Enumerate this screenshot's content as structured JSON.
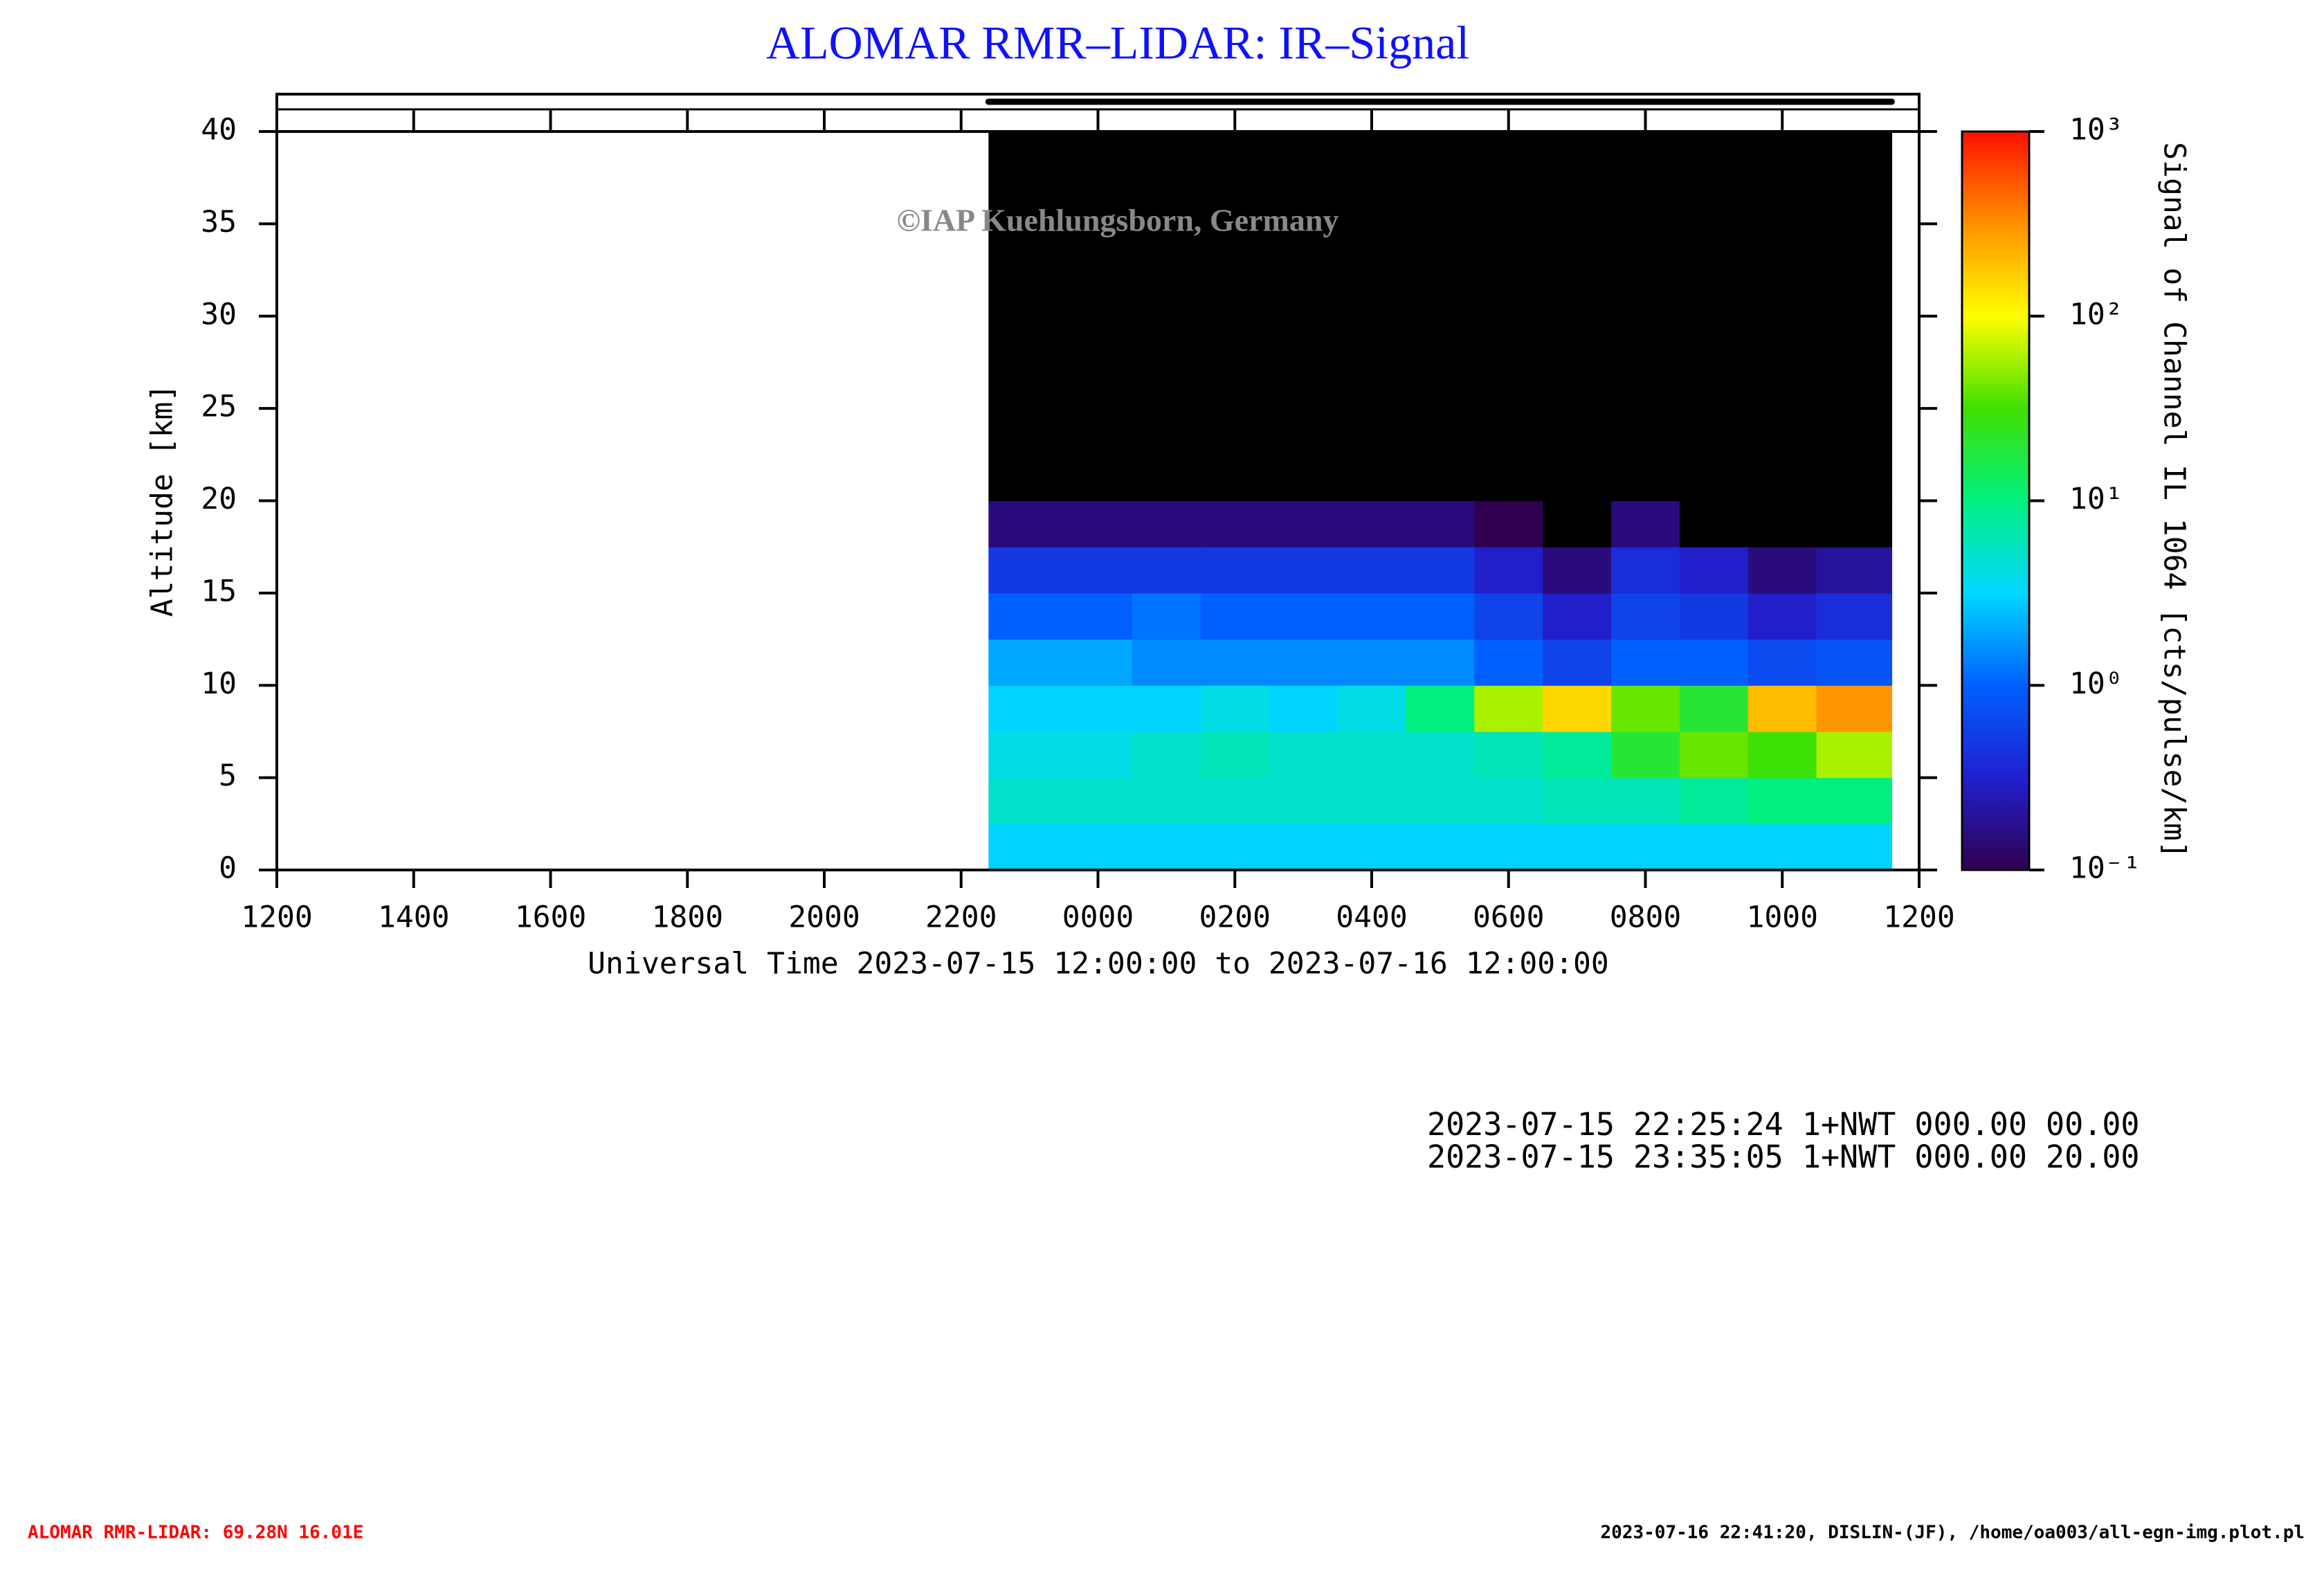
{
  "chart_data": {
    "type": "heatmap",
    "title": "ALOMAR RMR–LIDAR: IR–Signal",
    "watermark": "©IAP Kuehlungsborn, Germany",
    "x_label": "Universal Time 2023-07-15 12:00:00 to 2023-07-16 12:00:00",
    "y_label": "Altitude [km]",
    "xlim": [
      0,
      24
    ],
    "xticks": [
      {
        "value": 0,
        "label": "1200"
      },
      {
        "value": 2,
        "label": "1400"
      },
      {
        "value": 4,
        "label": "1600"
      },
      {
        "value": 6,
        "label": "1800"
      },
      {
        "value": 8,
        "label": "2000"
      },
      {
        "value": 10,
        "label": "2200"
      },
      {
        "value": 12,
        "label": "0000"
      },
      {
        "value": 14,
        "label": "0200"
      },
      {
        "value": 16,
        "label": "0400"
      },
      {
        "value": 18,
        "label": "0600"
      },
      {
        "value": 20,
        "label": "0800"
      },
      {
        "value": 22,
        "label": "1000"
      },
      {
        "value": 24,
        "label": "1200"
      }
    ],
    "ylim": [
      0,
      40
    ],
    "yticks": [
      0,
      5,
      10,
      15,
      20,
      25,
      30,
      35,
      40
    ],
    "x_edges": [
      10.4,
      11.5,
      12.5,
      13.5,
      14.5,
      15.5,
      16.5,
      17.5,
      18.5,
      19.5,
      20.5,
      21.5,
      22.5,
      23.6
    ],
    "y_edges": [
      0,
      2.5,
      5,
      7.5,
      10,
      12.5,
      15,
      17.5,
      20,
      40
    ],
    "values": [
      [
        3,
        3,
        3,
        3,
        3,
        3,
        3,
        3,
        3,
        3,
        3,
        3,
        3
      ],
      [
        5,
        5,
        5,
        5,
        5,
        5,
        5,
        5,
        6,
        6,
        8,
        10,
        10
      ],
      [
        4,
        4,
        5,
        6,
        5,
        5,
        5,
        6,
        8,
        20,
        40,
        30,
        60
      ],
      [
        3,
        3,
        3,
        4,
        3,
        4,
        10,
        60,
        150,
        40,
        20,
        200,
        300
      ],
      [
        2,
        2,
        1.5,
        1.5,
        1.5,
        1.5,
        1.5,
        1,
        0.6,
        1,
        1,
        0.7,
        0.8
      ],
      [
        1,
        1,
        1.2,
        1,
        1,
        1,
        1,
        0.6,
        0.3,
        0.6,
        0.5,
        0.3,
        0.4
      ],
      [
        0.5,
        0.5,
        0.5,
        0.5,
        0.5,
        0.5,
        0.5,
        0.3,
        0.15,
        0.4,
        0.3,
        0.15,
        0.2
      ],
      [
        0.15,
        0.15,
        0.15,
        0.15,
        0.15,
        0.15,
        0.15,
        0.1,
        0.06,
        0.15,
        0.08,
        0.06,
        0.08
      ],
      [
        0.05,
        0.05,
        0.05,
        0.05,
        0.05,
        0.05,
        0.05,
        0.05,
        0.05,
        0.05,
        0.05,
        0.05,
        0.05
      ]
    ],
    "colorbar": {
      "label": "Signal of Channel IL 1064 [cts/pulse/km]",
      "scale": "log",
      "lim": [
        0.1,
        1000
      ],
      "ticks": [
        {
          "value": 0.1,
          "label": "10⁻¹"
        },
        {
          "value": 1,
          "label": "10⁰"
        },
        {
          "value": 10,
          "label": "10¹"
        },
        {
          "value": 100,
          "label": "10²"
        },
        {
          "value": 1000,
          "label": "10³"
        }
      ],
      "colors": [
        "#300050",
        "#2020d0",
        "#0060ff",
        "#00d8ff",
        "#00f080",
        "#40e000",
        "#ffff00",
        "#ff9000",
        "#ff1000"
      ],
      "under_color": "#000000"
    },
    "info_lines": [
      "2023-07-15 22:25:24 1+NWT 000.00 00.00",
      "2023-07-15 23:35:05 1+NWT 000.00 20.00"
    ],
    "footer_left": "ALOMAR RMR-LIDAR: 69.28N 16.01E",
    "footer_right": "2023-07-16 22:41:20, DISLIN-(JF), /home/oa003/all-egn-img.plot.pl"
  }
}
